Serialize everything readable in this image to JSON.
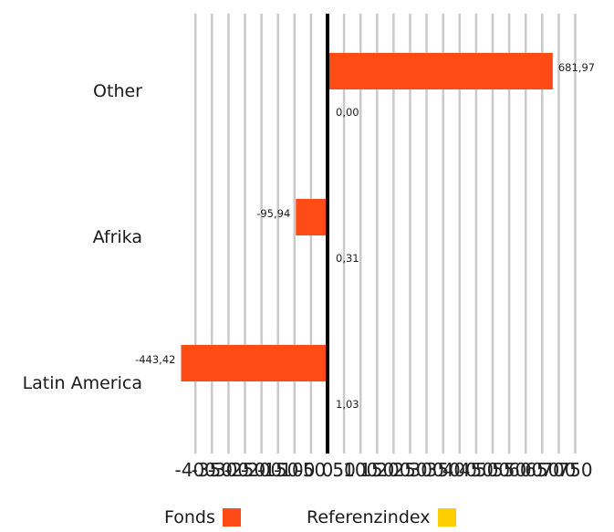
{
  "chart_data": {
    "type": "bar",
    "orientation": "horizontal",
    "categories": [
      "Other",
      "Afrika",
      "Latin America"
    ],
    "series": [
      {
        "name": "Fonds",
        "color": "#FF4C16",
        "values": [
          681.97,
          -95.94,
          -443.42
        ],
        "labels": [
          "681,97",
          "-95,94",
          "-443,42"
        ]
      },
      {
        "name": "Referenzindex",
        "color": "#FFCE00",
        "values": [
          0.0,
          0.31,
          1.03
        ],
        "labels": [
          "0,00",
          "0,31",
          "1,03"
        ]
      }
    ],
    "xlim": [
      -400,
      750
    ],
    "x_ticks": [
      -400,
      -350,
      -300,
      -250,
      -200,
      -150,
      -100,
      -50,
      0,
      50,
      100,
      150,
      200,
      250,
      300,
      350,
      400,
      450,
      500,
      550,
      600,
      650,
      700,
      750
    ],
    "x_tick_labels": [
      "-400",
      "-350",
      "-300",
      "-250",
      "-200",
      "-150",
      "-100",
      "-50",
      "0",
      "50",
      "100",
      "150",
      "200",
      "250",
      "300",
      "350",
      "400",
      "450",
      "500",
      "550",
      "600",
      "650",
      "700",
      "750"
    ],
    "grid": true,
    "legend_position": "bottom"
  },
  "legend": {
    "fonds_label": "Fonds",
    "referenz_label": "Referenzindex",
    "fonds_color": "#FF4C16",
    "referenz_color": "#FFCE00"
  }
}
